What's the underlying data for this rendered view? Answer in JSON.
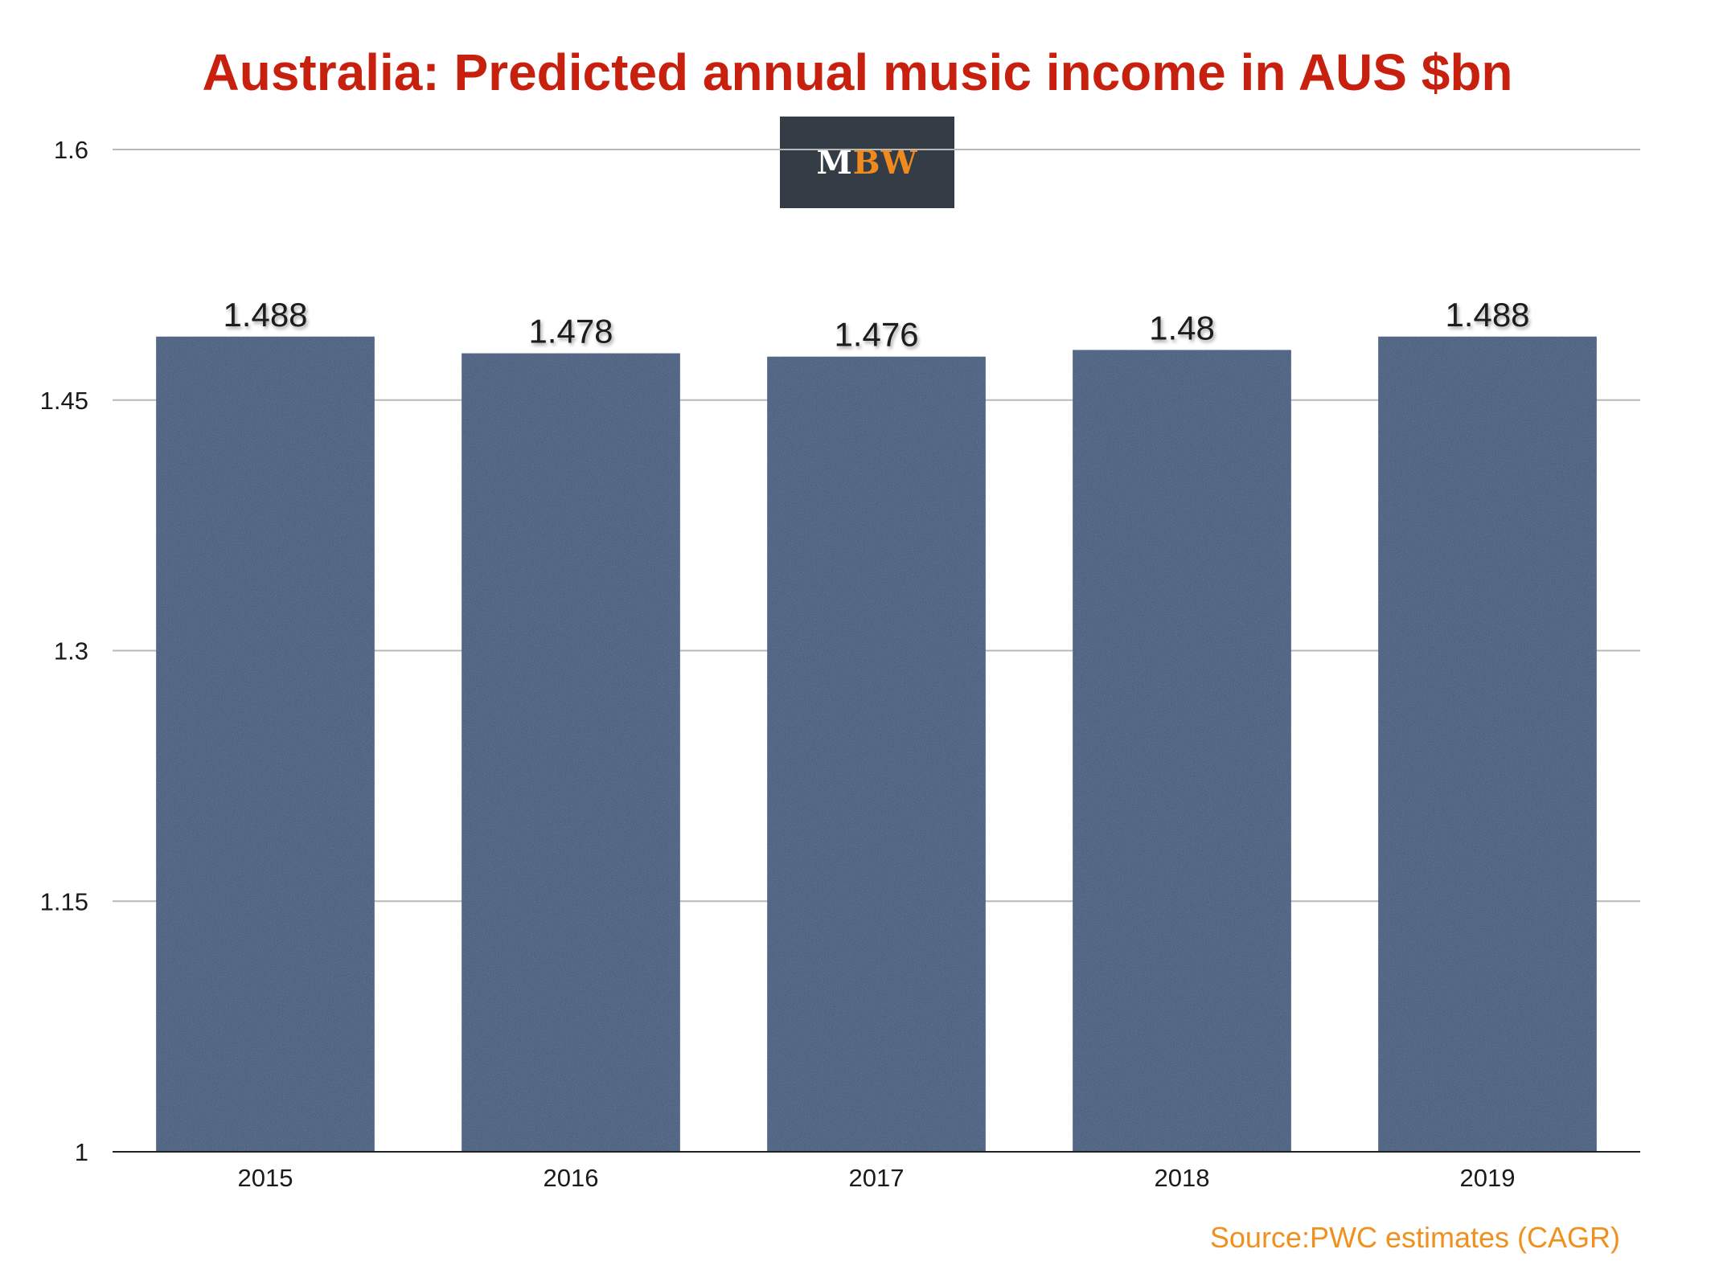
{
  "chart_data": {
    "type": "bar",
    "title": "Australia: Predicted annual music income in AUS $bn",
    "categories": [
      "2015",
      "2016",
      "2017",
      "2018",
      "2019"
    ],
    "values": [
      1.488,
      1.478,
      1.476,
      1.48,
      1.488
    ],
    "data_labels": [
      "1.488",
      "1.478",
      "1.476",
      "1.48",
      "1.488"
    ],
    "ylim": [
      1,
      1.6
    ],
    "yticks": [
      1,
      1.15,
      1.3,
      1.45,
      1.6
    ],
    "ytick_labels": [
      "1",
      "1.15",
      "1.3",
      "1.45",
      "1.6"
    ],
    "xlabel": "",
    "ylabel": "",
    "grid": true,
    "legend": "none"
  },
  "logo": {
    "text_m": "M",
    "text_bw": "BW"
  },
  "source_note": "Source:PWC estimates (CAGR)",
  "colors": {
    "title": "#c8200e",
    "bar": "#3f5b80",
    "bar_texture": "#4a6a8e",
    "logo_bg": "#343c45",
    "logo_m": "#ffffff",
    "logo_bw": "#f08a1c",
    "source": "#f0901e",
    "grid": "#b8b8b8",
    "axis": "#222222"
  }
}
